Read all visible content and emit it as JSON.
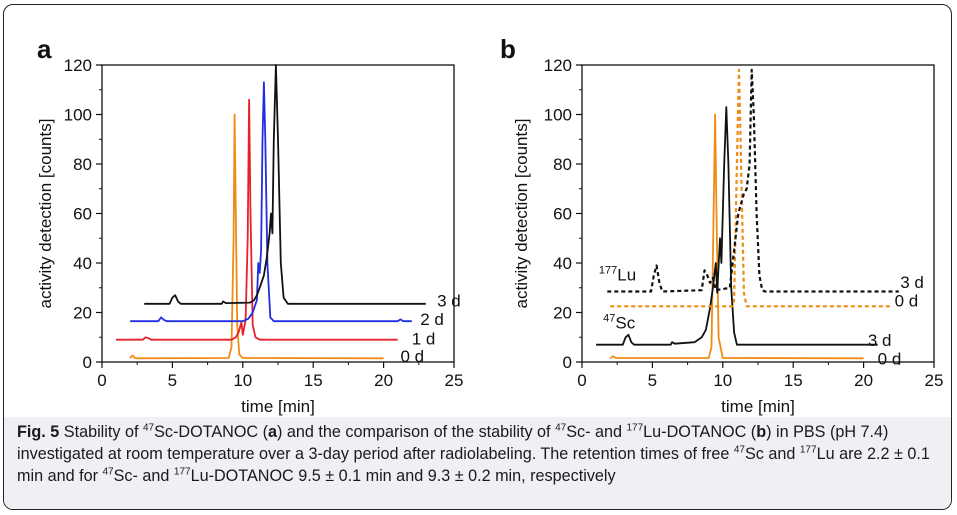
{
  "figure": {
    "caption": {
      "label": "Fig. 5",
      "text_parts": [
        {
          "t": " Stability of "
        },
        {
          "sup": "47"
        },
        {
          "t": "Sc-DOTANOC ("
        },
        {
          "b": "a"
        },
        {
          "t": ") and the comparison of the stability of "
        },
        {
          "sup": "47"
        },
        {
          "t": "Sc- and "
        },
        {
          "sup": "177"
        },
        {
          "t": "Lu-DOTANOC ("
        },
        {
          "b": "b"
        },
        {
          "t": ") in PBS (pH 7.4) investigated at room temperature over a 3-day period after radiolabeling. The retention times of free "
        },
        {
          "sup": "47"
        },
        {
          "t": "Sc and "
        },
        {
          "sup": "177"
        },
        {
          "t": "Lu are 2.2 ± 0.1 min and for "
        },
        {
          "sup": "47"
        },
        {
          "t": "Sc- and "
        },
        {
          "sup": "177"
        },
        {
          "t": "Lu-DOTANOC 9.5 ± 0.1 min and 9.3 ± 0.2 min, respectively"
        }
      ]
    }
  },
  "chart_data": [
    {
      "panel_label": "a",
      "type": "line",
      "xlabel": "time [min]",
      "ylabel": "activity detection [counts]",
      "xlim": [
        0,
        25
      ],
      "ylim": [
        0,
        120
      ],
      "xticks": [
        0,
        5,
        10,
        15,
        20,
        25
      ],
      "yticks": [
        0,
        20,
        40,
        60,
        80,
        100,
        120
      ],
      "grid": false,
      "series": [
        {
          "name": "0 d",
          "color": "#f08c14",
          "dash": false,
          "points": [
            [
              2.0,
              1.5
            ],
            [
              2.1,
              2.3
            ],
            [
              2.2,
              2.6
            ],
            [
              2.3,
              1.7
            ],
            [
              2.5,
              1.5
            ],
            [
              9.0,
              1.6
            ],
            [
              9.2,
              6
            ],
            [
              9.35,
              50
            ],
            [
              9.42,
              100
            ],
            [
              9.5,
              60
            ],
            [
              9.6,
              15
            ],
            [
              9.75,
              3
            ],
            [
              10.0,
              1.6
            ],
            [
              20.0,
              1.5
            ]
          ]
        },
        {
          "name": "1 d",
          "color": "#e8202a",
          "dash": false,
          "points": [
            [
              1.0,
              9
            ],
            [
              2.9,
              9
            ],
            [
              3.1,
              10
            ],
            [
              3.3,
              9.6
            ],
            [
              3.5,
              9
            ],
            [
              9.2,
              9
            ],
            [
              9.5,
              10
            ],
            [
              9.7,
              12
            ],
            [
              9.9,
              16
            ],
            [
              10.0,
              11
            ],
            [
              10.1,
              14
            ],
            [
              10.2,
              17
            ],
            [
              10.35,
              50
            ],
            [
              10.45,
              106
            ],
            [
              10.55,
              60
            ],
            [
              10.7,
              15
            ],
            [
              10.9,
              10
            ],
            [
              11.2,
              9
            ],
            [
              21.0,
              9
            ]
          ]
        },
        {
          "name": "2 d",
          "color": "#1f2ee0",
          "dash": false,
          "points": [
            [
              2.0,
              16.5
            ],
            [
              4.0,
              16.5
            ],
            [
              4.2,
              18
            ],
            [
              4.4,
              17
            ],
            [
              4.6,
              16.5
            ],
            [
              10.0,
              16.5
            ],
            [
              10.4,
              17.5
            ],
            [
              10.7,
              20
            ],
            [
              11.0,
              25
            ],
            [
              11.1,
              40
            ],
            [
              11.2,
              36
            ],
            [
              11.3,
              45
            ],
            [
              11.4,
              90
            ],
            [
              11.5,
              113
            ],
            [
              11.6,
              90
            ],
            [
              11.75,
              40
            ],
            [
              11.95,
              18
            ],
            [
              12.2,
              16.5
            ],
            [
              21.0,
              16.5
            ],
            [
              21.2,
              17.2
            ],
            [
              21.4,
              16.5
            ],
            [
              22.0,
              16.5
            ]
          ]
        },
        {
          "name": "3 d",
          "color": "#111111",
          "dash": false,
          "points": [
            [
              3.0,
              23.5
            ],
            [
              4.8,
              23.5
            ],
            [
              5.0,
              26
            ],
            [
              5.2,
              27
            ],
            [
              5.4,
              24.5
            ],
            [
              5.6,
              23.5
            ],
            [
              8.5,
              23.5
            ],
            [
              8.6,
              24.5
            ],
            [
              8.8,
              23.8
            ],
            [
              10.5,
              24
            ],
            [
              10.8,
              25
            ],
            [
              11.0,
              27
            ],
            [
              11.2,
              30
            ],
            [
              11.5,
              35
            ],
            [
              11.7,
              42
            ],
            [
              11.9,
              52
            ],
            [
              12.0,
              60
            ],
            [
              12.1,
              52
            ],
            [
              12.2,
              90
            ],
            [
              12.35,
              120
            ],
            [
              12.5,
              90
            ],
            [
              12.7,
              40
            ],
            [
              12.9,
              26
            ],
            [
              13.2,
              23.5
            ],
            [
              23.0,
              23.5
            ]
          ]
        }
      ],
      "curve_labels": [
        {
          "text": "0 d",
          "x": 21.2,
          "y": 0
        },
        {
          "text": "1 d",
          "x": 22.0,
          "y": 7
        },
        {
          "text": "2 d",
          "x": 22.6,
          "y": 15
        },
        {
          "text": "3 d",
          "x": 23.8,
          "y": 22.5
        }
      ]
    },
    {
      "panel_label": "b",
      "type": "line",
      "xlabel": "time [min]",
      "ylabel": "activity detection [counts]",
      "xlim": [
        0,
        25
      ],
      "ylim": [
        0,
        120
      ],
      "xticks": [
        0,
        5,
        10,
        15,
        20,
        25
      ],
      "yticks": [
        0,
        20,
        40,
        60,
        80,
        100,
        120
      ],
      "grid": false,
      "series": [
        {
          "name": "47Sc 0 d",
          "color": "#f08c14",
          "dash": false,
          "points": [
            [
              2.0,
              1.5
            ],
            [
              2.2,
              2.3
            ],
            [
              2.4,
              1.6
            ],
            [
              9.0,
              1.6
            ],
            [
              9.2,
              6
            ],
            [
              9.35,
              60
            ],
            [
              9.45,
              100
            ],
            [
              9.55,
              60
            ],
            [
              9.7,
              10
            ],
            [
              10.0,
              1.6
            ],
            [
              20.0,
              1.5
            ]
          ]
        },
        {
          "name": "47Sc 3 d",
          "color": "#111111",
          "dash": false,
          "points": [
            [
              1.0,
              7
            ],
            [
              2.9,
              7
            ],
            [
              3.1,
              10
            ],
            [
              3.3,
              11
            ],
            [
              3.5,
              8
            ],
            [
              3.7,
              7
            ],
            [
              6.3,
              7
            ],
            [
              6.4,
              8
            ],
            [
              6.6,
              7.4
            ],
            [
              8.0,
              8
            ],
            [
              8.5,
              10
            ],
            [
              8.8,
              13
            ],
            [
              9.1,
              22
            ],
            [
              9.3,
              30
            ],
            [
              9.5,
              40
            ],
            [
              9.6,
              28
            ],
            [
              9.8,
              50
            ],
            [
              9.9,
              40
            ],
            [
              10.1,
              80
            ],
            [
              10.25,
              103
            ],
            [
              10.4,
              80
            ],
            [
              10.6,
              30
            ],
            [
              10.8,
              12
            ],
            [
              11.0,
              7
            ],
            [
              21.0,
              7
            ]
          ]
        },
        {
          "name": "177Lu 0 d",
          "color": "#f08c14",
          "dash": true,
          "points": [
            [
              2.0,
              22.5
            ],
            [
              10.7,
              22.5
            ],
            [
              10.8,
              25
            ],
            [
              11.0,
              80
            ],
            [
              11.15,
              118
            ],
            [
              11.3,
              80
            ],
            [
              11.5,
              28
            ],
            [
              11.7,
              22.5
            ],
            [
              22.0,
              22.5
            ]
          ]
        },
        {
          "name": "177Lu 3 d",
          "color": "#111111",
          "dash": true,
          "points": [
            [
              1.8,
              28.5
            ],
            [
              4.9,
              28.5
            ],
            [
              5.1,
              35
            ],
            [
              5.3,
              39
            ],
            [
              5.5,
              32
            ],
            [
              5.7,
              28.5
            ],
            [
              8.5,
              29
            ],
            [
              8.7,
              37
            ],
            [
              8.9,
              35
            ],
            [
              9.1,
              32
            ],
            [
              9.3,
              34
            ],
            [
              9.5,
              29
            ],
            [
              10.5,
              30
            ],
            [
              10.8,
              45
            ],
            [
              11.1,
              60
            ],
            [
              11.3,
              64
            ],
            [
              11.5,
              68
            ],
            [
              11.7,
              70
            ],
            [
              11.9,
              80
            ],
            [
              12.05,
              118
            ],
            [
              12.2,
              100
            ],
            [
              12.4,
              60
            ],
            [
              12.6,
              35
            ],
            [
              12.8,
              29
            ],
            [
              13.0,
              28.5
            ],
            [
              22.5,
              28.5
            ]
          ]
        }
      ],
      "curve_labels": [
        {
          "text": "3 d",
          "x": 22.6,
          "y": 30
        },
        {
          "text": "0 d",
          "x": 22.2,
          "y": 22.5
        },
        {
          "text": "3 d",
          "x": 20.3,
          "y": 6.5
        },
        {
          "text": "0 d",
          "x": 21.0,
          "y": -1
        }
      ],
      "isotope_labels": [
        {
          "mass": "177",
          "element": "Lu",
          "x": 1.2,
          "y": 33
        },
        {
          "mass": "47",
          "element": "Sc",
          "x": 1.5,
          "y": 13.5
        }
      ]
    }
  ]
}
